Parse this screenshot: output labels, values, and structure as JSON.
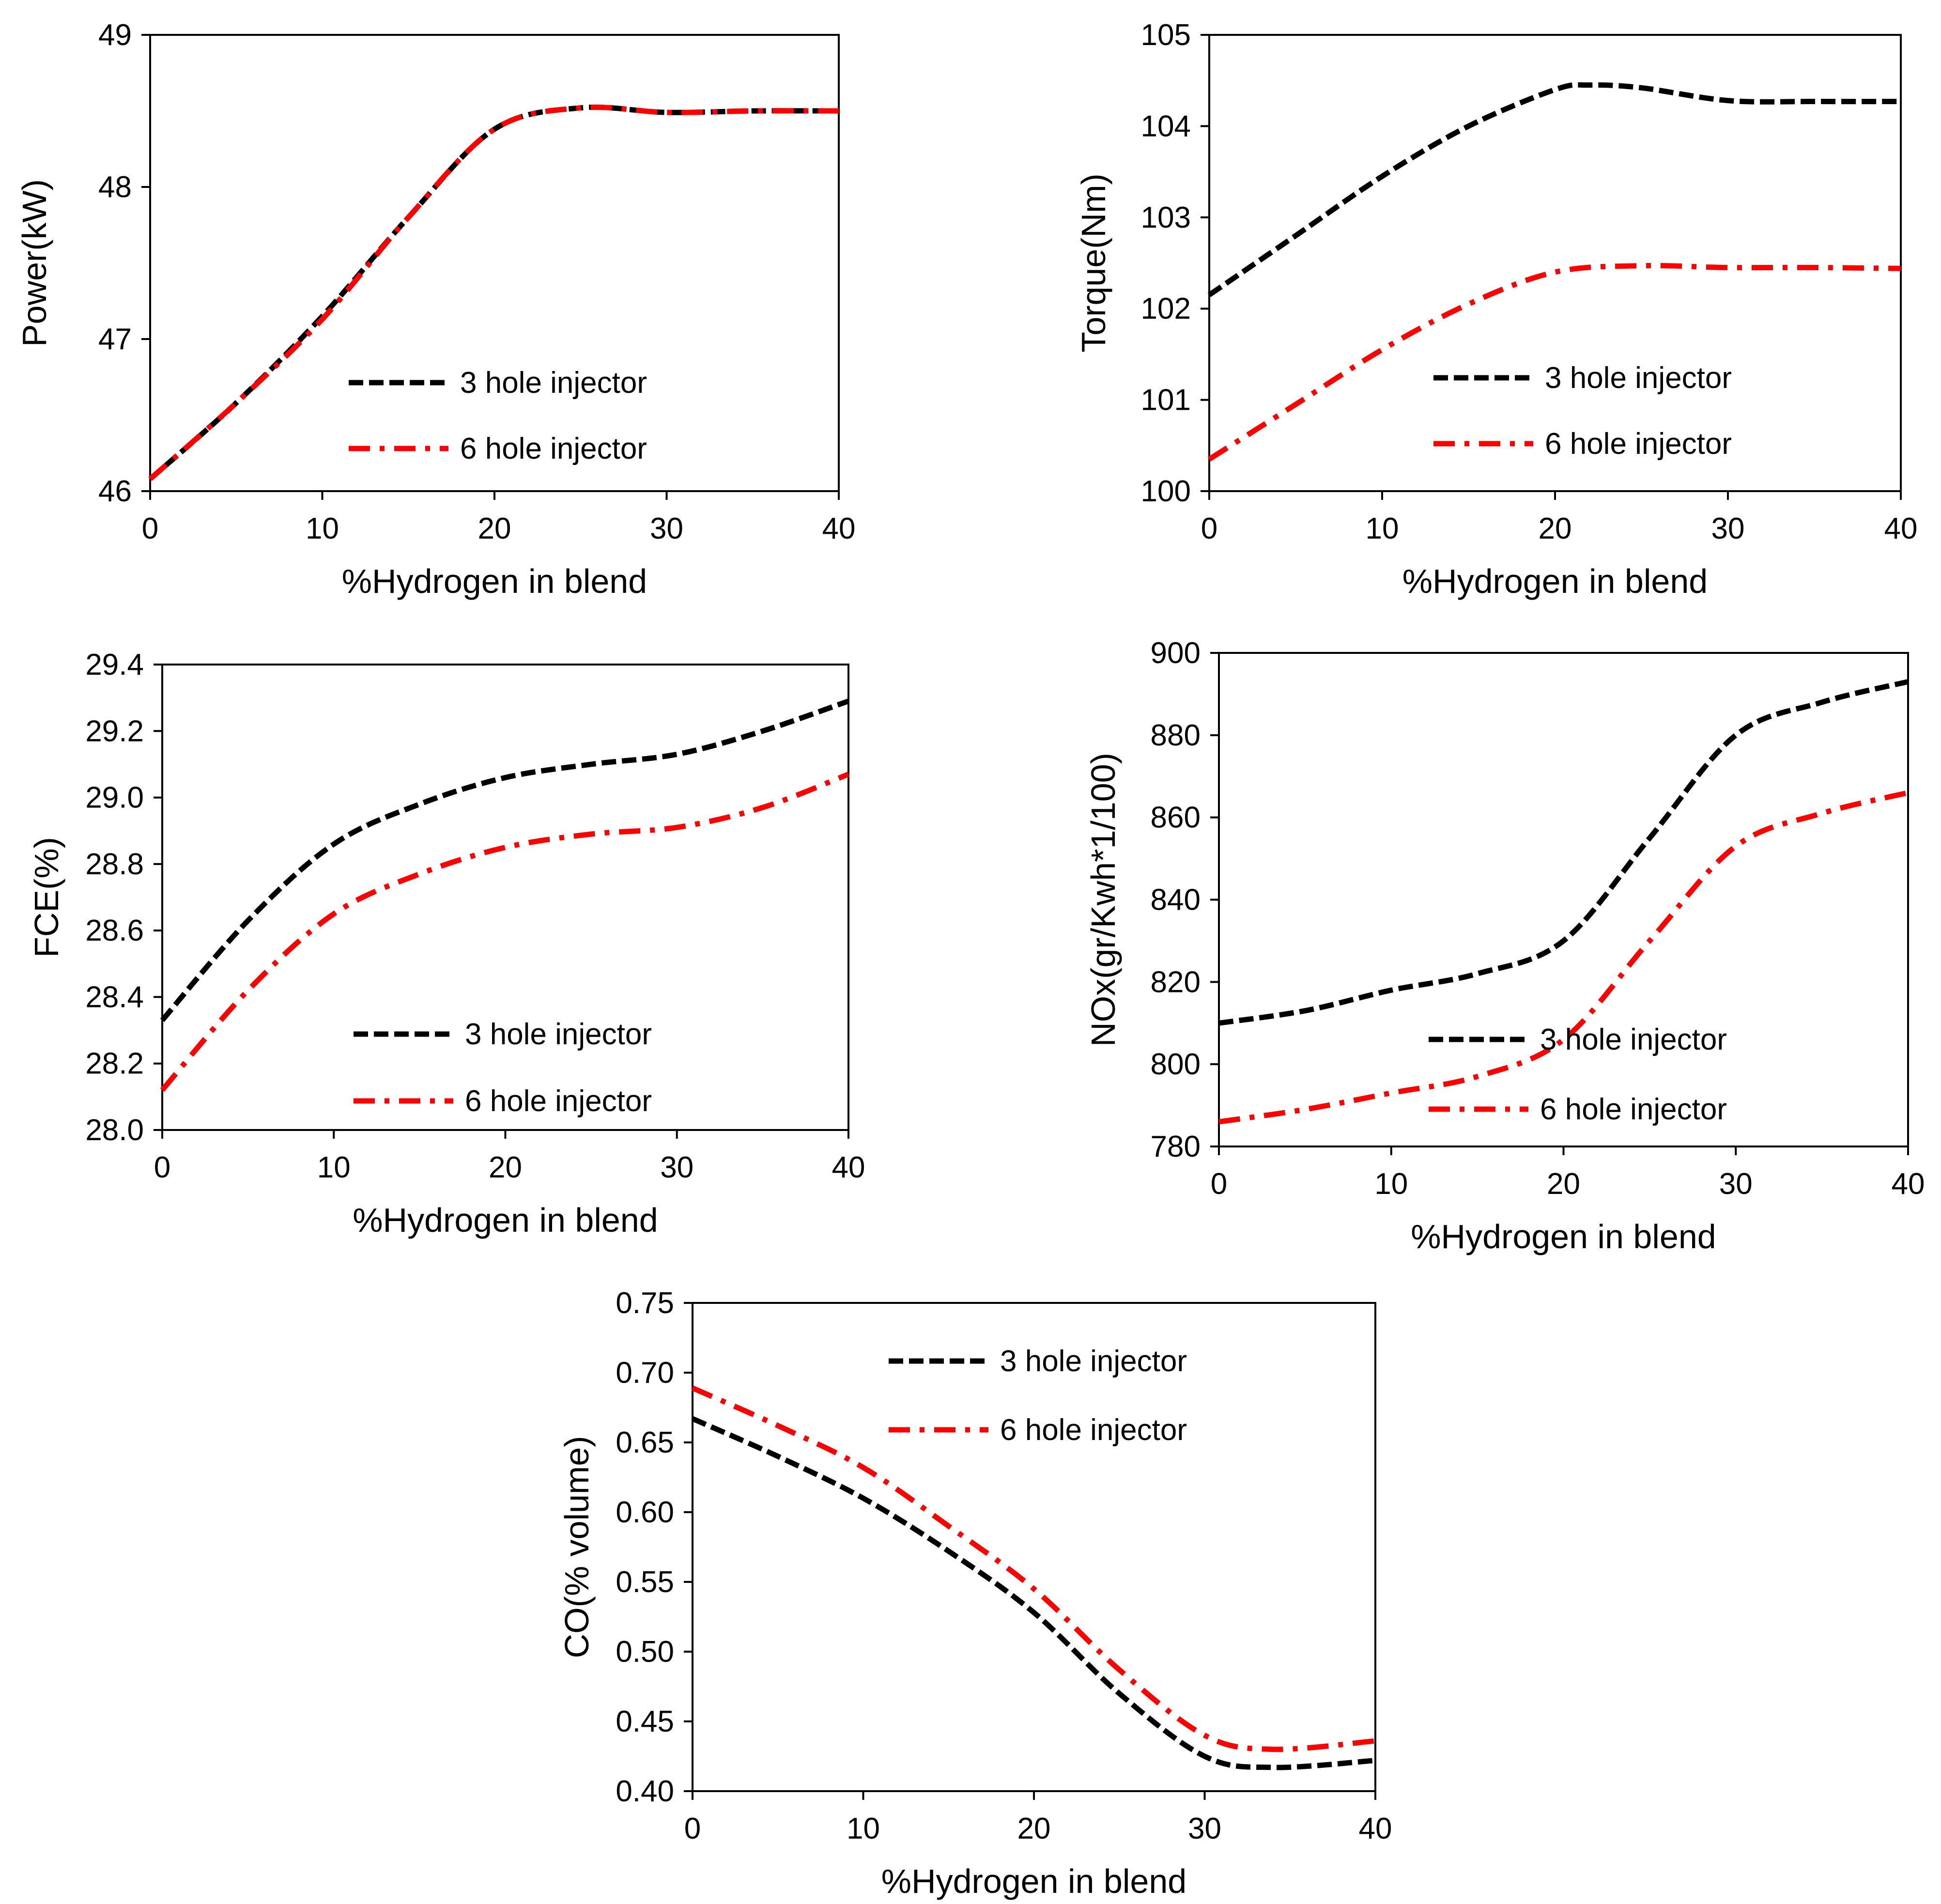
{
  "colors": {
    "series_3hole": "#000000",
    "series_6hole": "#ff0000",
    "axis": "#000000",
    "background": "#ffffff"
  },
  "chart_data": [
    {
      "id": "power",
      "type": "line",
      "xlabel": "%Hydrogen in blend",
      "ylabel": "Power(kW)",
      "xlim": [
        0,
        40
      ],
      "ylim": [
        46,
        49
      ],
      "xticks": [
        "0",
        "10",
        "20",
        "30",
        "40"
      ],
      "yticks": [
        "46",
        "47",
        "48",
        "49"
      ],
      "legend_position": "lower-right",
      "series": [
        {
          "name": "3 hole injector",
          "style": "dashed",
          "x": [
            0,
            5,
            10,
            15,
            20,
            25,
            30,
            35,
            40
          ],
          "y": [
            46.08,
            46.58,
            47.15,
            47.8,
            48.38,
            48.52,
            48.49,
            48.5,
            48.5
          ]
        },
        {
          "name": "6 hole injector",
          "style": "dashdot",
          "x": [
            0,
            5,
            10,
            15,
            20,
            25,
            30,
            35,
            40
          ],
          "y": [
            46.08,
            46.58,
            47.13,
            47.8,
            48.38,
            48.52,
            48.49,
            48.5,
            48.5
          ]
        }
      ]
    },
    {
      "id": "torque",
      "type": "line",
      "xlabel": "%Hydrogen in blend",
      "ylabel": "Torque(Nm)",
      "xlim": [
        0,
        40
      ],
      "ylim": [
        100,
        105
      ],
      "xticks": [
        "0",
        "10",
        "20",
        "30",
        "40"
      ],
      "yticks": [
        "100",
        "101",
        "102",
        "103",
        "104",
        "105"
      ],
      "legend_position": "lower-right",
      "series": [
        {
          "name": "3 hole injector",
          "style": "dashed",
          "x": [
            0,
            5,
            10,
            15,
            20,
            22,
            25,
            30,
            35,
            40
          ],
          "y": [
            102.15,
            102.8,
            103.45,
            104.0,
            104.4,
            104.45,
            104.42,
            104.28,
            104.27,
            104.27
          ]
        },
        {
          "name": "6 hole injector",
          "style": "dashdot",
          "x": [
            0,
            5,
            10,
            15,
            20,
            25,
            30,
            35,
            40
          ],
          "y": [
            100.35,
            100.95,
            101.55,
            102.05,
            102.4,
            102.47,
            102.45,
            102.45,
            102.44
          ]
        }
      ]
    },
    {
      "id": "fce",
      "type": "line",
      "xlabel": "%Hydrogen in blend",
      "ylabel": "FCE(%)",
      "xlim": [
        0,
        40
      ],
      "ylim": [
        28.0,
        29.4
      ],
      "xticks": [
        "0",
        "10",
        "20",
        "30",
        "40"
      ],
      "yticks": [
        "28.0",
        "28.2",
        "28.4",
        "28.6",
        "28.8",
        "29.0",
        "29.2",
        "29.4"
      ],
      "legend_position": "lower-right",
      "series": [
        {
          "name": "3 hole injector",
          "style": "dashed",
          "x": [
            0,
            5,
            10,
            15,
            20,
            25,
            30,
            35,
            40
          ],
          "y": [
            28.33,
            28.63,
            28.86,
            28.98,
            29.06,
            29.1,
            29.13,
            29.2,
            29.29
          ]
        },
        {
          "name": "6 hole injector",
          "style": "dashdot",
          "x": [
            0,
            5,
            10,
            15,
            20,
            25,
            30,
            35,
            40
          ],
          "y": [
            28.12,
            28.42,
            28.65,
            28.77,
            28.85,
            28.89,
            28.91,
            28.97,
            29.07
          ]
        }
      ]
    },
    {
      "id": "nox",
      "type": "line",
      "xlabel": "%Hydrogen in blend",
      "ylabel": "NOx(gr/Kwh*1/100)",
      "xlim": [
        0,
        40
      ],
      "ylim": [
        780,
        900
      ],
      "xticks": [
        "0",
        "10",
        "20",
        "30",
        "40"
      ],
      "yticks": [
        "780",
        "800",
        "820",
        "840",
        "860",
        "880",
        "900"
      ],
      "legend_position": "lower-right",
      "series": [
        {
          "name": "3 hole injector",
          "style": "dashed",
          "x": [
            0,
            5,
            10,
            15,
            20,
            25,
            30,
            35,
            40
          ],
          "y": [
            810,
            813,
            818,
            822,
            830,
            855,
            880,
            888,
            893
          ]
        },
        {
          "name": "6 hole injector",
          "style": "dashdot",
          "x": [
            0,
            5,
            10,
            15,
            20,
            25,
            30,
            35,
            40
          ],
          "y": [
            786,
            789,
            793,
            797,
            806,
            830,
            853,
            861,
            866
          ]
        }
      ]
    },
    {
      "id": "co",
      "type": "line",
      "xlabel": "%Hydrogen in blend",
      "ylabel": "CO(% volume)",
      "xlim": [
        0,
        40
      ],
      "ylim": [
        0.4,
        0.75
      ],
      "xticks": [
        "0",
        "10",
        "20",
        "30",
        "40"
      ],
      "yticks": [
        "0.40",
        "0.45",
        "0.50",
        "0.55",
        "0.60",
        "0.65",
        "0.70",
        "0.75"
      ],
      "legend_position": "upper-right",
      "series": [
        {
          "name": "3 hole injector",
          "style": "dashed",
          "x": [
            0,
            5,
            10,
            15,
            20,
            25,
            30,
            34,
            40
          ],
          "y": [
            0.667,
            0.64,
            0.61,
            0.572,
            0.528,
            0.47,
            0.425,
            0.417,
            0.422
          ]
        },
        {
          "name": "6 hole injector",
          "style": "dashdot",
          "x": [
            0,
            5,
            10,
            15,
            20,
            25,
            30,
            34,
            40
          ],
          "y": [
            0.689,
            0.662,
            0.632,
            0.59,
            0.545,
            0.487,
            0.44,
            0.43,
            0.436
          ]
        }
      ]
    }
  ]
}
